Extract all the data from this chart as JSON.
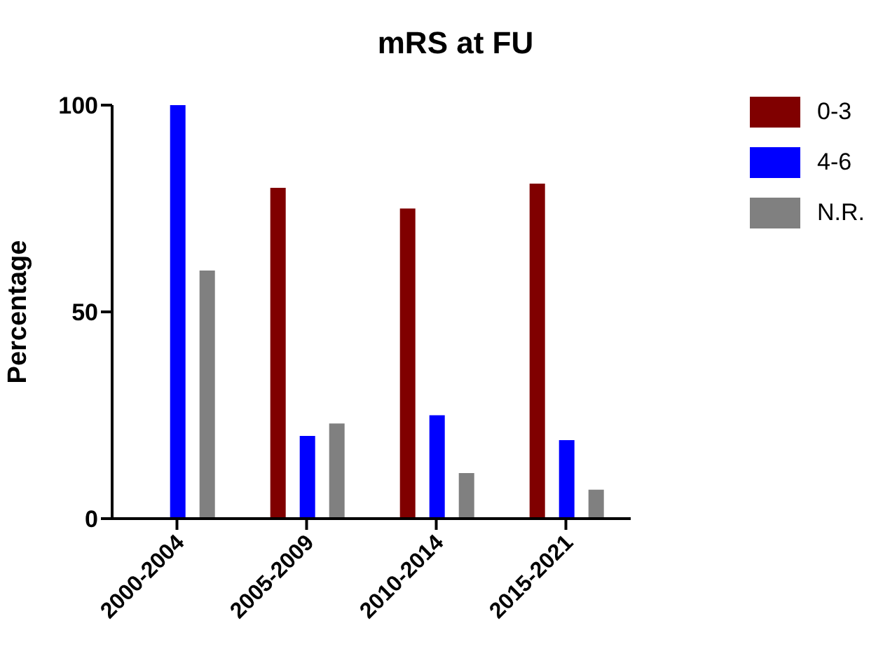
{
  "chart_data": {
    "type": "bar",
    "title": "mRS at FU",
    "ylabel": "Percentage",
    "categories": [
      "2000-2004",
      "2005-2009",
      "2010-2014",
      "2015-2021"
    ],
    "series": [
      {
        "name": "0-3",
        "color": "#800000",
        "values": [
          0,
          80,
          75,
          81
        ]
      },
      {
        "name": "4-6",
        "color": "#0000ff",
        "values": [
          100,
          20,
          25,
          19
        ]
      },
      {
        "name": "N.R.",
        "color": "#808080",
        "values": [
          60,
          23,
          11,
          7
        ]
      }
    ],
    "ylim": [
      0,
      100
    ],
    "yticks": [
      0,
      50,
      100
    ],
    "grid": false,
    "legend": "top right"
  }
}
